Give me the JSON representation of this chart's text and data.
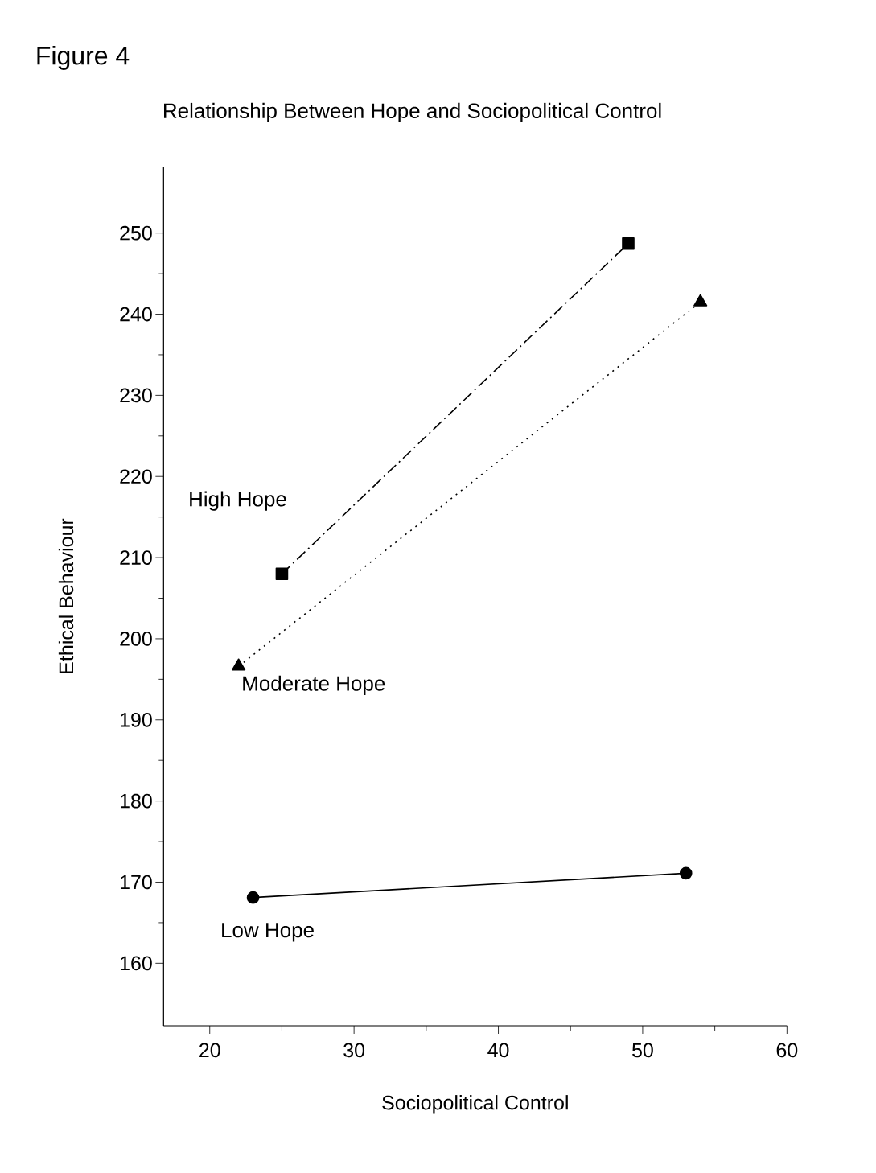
{
  "chart_data": {
    "type": "line",
    "title": "Figure 4",
    "subtitle": "Relationship Between Hope and Sociopolitical Control",
    "xlabel": "Sociopolitical Control",
    "ylabel": "Ethical Behaviour",
    "xlim": [
      16.8,
      60
    ],
    "xticks": [
      20,
      30,
      40,
      50,
      60
    ],
    "ylim": [
      152.3,
      258.1
    ],
    "yticks": [
      160,
      170,
      180,
      190,
      200,
      210,
      220,
      230,
      240,
      250
    ],
    "series": [
      {
        "name": "High Hope",
        "color": "#000000",
        "x": [
          25,
          49
        ],
        "values": [
          208,
          248.7
        ],
        "marker": "square",
        "line_style": "dashdot"
      },
      {
        "name": "Moderate Hope",
        "color": "#000000",
        "x": [
          22,
          54
        ],
        "values": [
          196.6,
          241.5
        ],
        "marker": "triangle",
        "line_style": "dotted"
      },
      {
        "name": "Low Hope",
        "color": "#000000",
        "x": [
          23,
          53
        ],
        "values": [
          168.1,
          171.1
        ],
        "marker": "circle",
        "line_style": "solid"
      }
    ]
  }
}
